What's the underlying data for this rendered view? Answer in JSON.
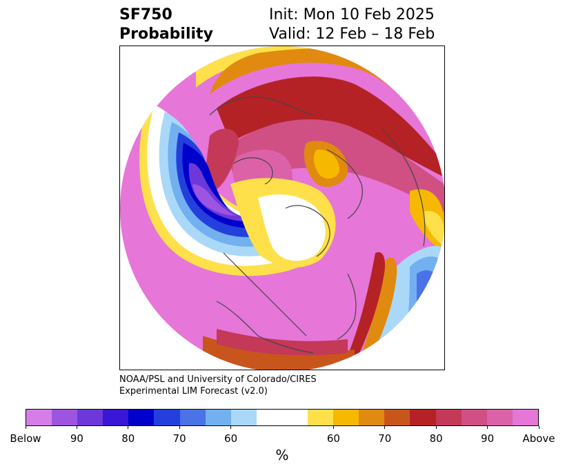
{
  "header": {
    "title_line1": "SF750",
    "title_line2": "Probability",
    "init_line": "Init: Mon 10 Feb 2025",
    "valid_line": "Valid: 12 Feb – 18 Feb"
  },
  "credit": {
    "line1": "NOAA/PSL and University of Colorado/CIRES",
    "line2": "Experimental LIM Forecast (v2.0)"
  },
  "colorbar": {
    "colors": [
      "#d67ee8",
      "#9c55e0",
      "#6c39d8",
      "#3a16d6",
      "#0000cc",
      "#2340dc",
      "#4b72e6",
      "#72b0f0",
      "#aad8f8",
      "#ffffff",
      "#ffffff",
      "#fee04a",
      "#f6b800",
      "#e08a10",
      "#c8561c",
      "#b42226",
      "#c43858",
      "#d05084",
      "#dc62a8",
      "#e676d8"
    ],
    "tick_labels": [
      "Below",
      "90",
      "80",
      "70",
      "60",
      "60",
      "70",
      "80",
      "90",
      "Above"
    ],
    "unit_label": "%"
  },
  "map": {
    "projection": "north-polar-stereographic",
    "field": "SF750 probability",
    "colors": {
      "above_strong": "#e676d8",
      "above_high": "#d05084",
      "above_mid": "#b42226",
      "above_low": "#e08a10",
      "above_weak": "#fee04a",
      "below_strong": "#0000cc",
      "below_mid": "#4b72e6",
      "below_weak": "#aad8f8",
      "below_extreme": "#9c55e0",
      "coastline": "#444444"
    }
  }
}
